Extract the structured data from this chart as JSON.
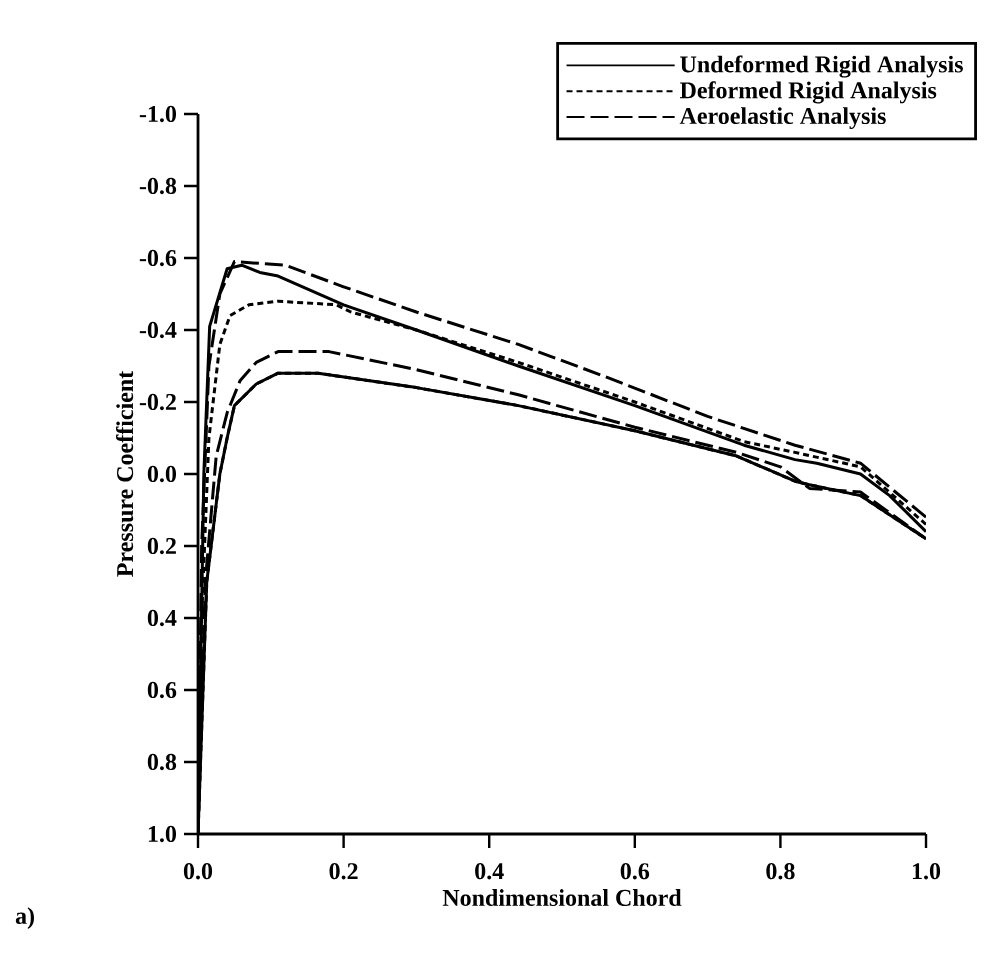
{
  "chart_data": {
    "type": "line",
    "xlabel": "Nondimensional Chord",
    "ylabel": "Pressure Coefficient",
    "legend": "top right",
    "annotations": [
      "a)"
    ],
    "xlim": [
      0.0,
      1.0
    ],
    "ylim": [
      1.0,
      -1.0
    ],
    "xticks": [
      {
        "value": 0.0,
        "label": "0.0"
      },
      {
        "value": 0.2,
        "label": "0.2"
      },
      {
        "value": 0.4,
        "label": "0.4"
      },
      {
        "value": 0.6,
        "label": "0.6"
      },
      {
        "value": 0.8,
        "label": "0.8"
      },
      {
        "value": 1.0,
        "label": "1.0"
      }
    ],
    "yticks": [
      {
        "value": -1.0,
        "label": "-1.0"
      },
      {
        "value": -0.8,
        "label": "-0.8"
      },
      {
        "value": -0.6,
        "label": "-0.6"
      },
      {
        "value": -0.4,
        "label": "-0.4"
      },
      {
        "value": -0.2,
        "label": "-0.2"
      },
      {
        "value": 0.0,
        "label": "0.0"
      },
      {
        "value": 0.2,
        "label": "0.2"
      },
      {
        "value": 0.4,
        "label": "0.4"
      },
      {
        "value": 0.6,
        "label": "0.6"
      },
      {
        "value": 0.8,
        "label": "0.8"
      },
      {
        "value": 1.0,
        "label": "1.0"
      }
    ],
    "series": [
      {
        "name": "Undeformed Rigid Analysis",
        "color": "#000000",
        "line_style": "solid",
        "x": [
          1.0,
          0.95,
          0.91,
          0.85,
          0.82,
          0.75,
          0.6,
          0.44,
          0.3,
          0.2,
          0.11,
          0.085,
          0.06,
          0.04,
          0.016,
          0.008,
          0.0,
          0.012,
          0.03,
          0.04,
          0.05,
          0.08,
          0.11,
          0.165,
          0.3,
          0.44,
          0.6,
          0.74,
          0.82,
          0.84,
          0.91,
          1.0
        ],
        "values": [
          0.16,
          0.06,
          0.0,
          -0.03,
          -0.04,
          -0.08,
          -0.19,
          -0.3,
          -0.4,
          -0.47,
          -0.55,
          -0.56,
          -0.58,
          -0.57,
          -0.41,
          0.0,
          1.0,
          0.3,
          0.0,
          -0.1,
          -0.19,
          -0.25,
          -0.28,
          -0.28,
          -0.24,
          -0.19,
          -0.12,
          -0.05,
          0.02,
          0.03,
          0.06,
          0.18
        ]
      },
      {
        "name": "Deformed Rigid Analysis",
        "color": "#000000",
        "line_style": "dotted",
        "x": [
          1.0,
          0.91,
          0.82,
          0.75,
          0.6,
          0.44,
          0.3,
          0.21,
          0.19,
          0.11,
          0.07,
          0.044,
          0.03,
          0.015,
          0.005,
          0.0,
          0.012,
          0.03,
          0.04,
          0.05,
          0.08,
          0.11,
          0.165,
          0.3,
          0.44,
          0.6,
          0.74,
          0.82,
          0.84,
          0.91,
          1.0
        ],
        "values": [
          0.14,
          -0.02,
          -0.06,
          -0.09,
          -0.2,
          -0.31,
          -0.4,
          -0.45,
          -0.47,
          -0.48,
          -0.47,
          -0.44,
          -0.36,
          -0.1,
          0.4,
          1.0,
          0.3,
          0.0,
          -0.1,
          -0.19,
          -0.25,
          -0.28,
          -0.28,
          -0.24,
          -0.19,
          -0.12,
          -0.05,
          0.02,
          0.03,
          0.06,
          0.18
        ]
      },
      {
        "name": "Aeroelastic Analysis",
        "color": "#000000",
        "line_style": "dashed",
        "x": [
          1.0,
          0.91,
          0.82,
          0.7,
          0.56,
          0.44,
          0.3,
          0.2,
          0.12,
          0.05,
          0.03,
          0.015,
          0.005,
          0.0,
          0.01,
          0.025,
          0.04,
          0.058,
          0.08,
          0.11,
          0.18,
          0.3,
          0.44,
          0.6,
          0.74,
          0.8,
          0.84,
          0.91,
          1.0
        ],
        "values": [
          0.12,
          -0.03,
          -0.08,
          -0.16,
          -0.27,
          -0.36,
          -0.45,
          -0.52,
          -0.58,
          -0.59,
          -0.5,
          -0.3,
          0.2,
          1.0,
          0.3,
          -0.05,
          -0.17,
          -0.26,
          -0.31,
          -0.34,
          -0.34,
          -0.29,
          -0.22,
          -0.13,
          -0.06,
          -0.02,
          0.04,
          0.05,
          0.18
        ]
      }
    ]
  }
}
